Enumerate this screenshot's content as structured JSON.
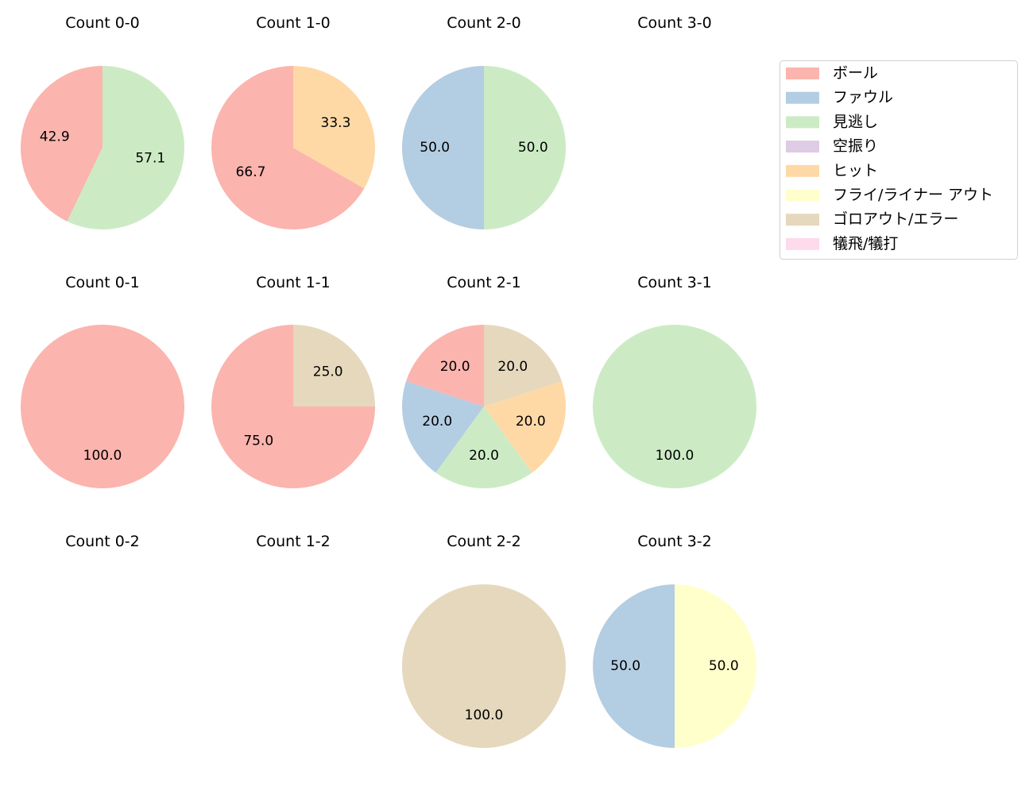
{
  "chart_data": {
    "type": "pie",
    "legend": {
      "placement": "top-right",
      "entries": [
        {
          "label": "ボール",
          "color": "#fbb4ae"
        },
        {
          "label": "ファウル",
          "color": "#b3cde3"
        },
        {
          "label": "見逃し",
          "color": "#ccebc5"
        },
        {
          "label": "空振り",
          "color": "#decbe4"
        },
        {
          "label": "ヒット",
          "color": "#fed9a6"
        },
        {
          "label": "フライ/ライナー アウト",
          "color": "#ffffcc"
        },
        {
          "label": "ゴロアウト/エラー",
          "color": "#e5d8bd"
        },
        {
          "label": "犠飛/犠打",
          "color": "#fddaec"
        }
      ]
    },
    "panels": [
      {
        "title": "Count 0-0",
        "slices": [
          {
            "category": 0,
            "value": 42.9,
            "label": "42.9"
          },
          {
            "category": 2,
            "value": 57.1,
            "label": "57.1"
          }
        ]
      },
      {
        "title": "Count 1-0",
        "slices": [
          {
            "category": 0,
            "value": 66.7,
            "label": "66.7"
          },
          {
            "category": 4,
            "value": 33.3,
            "label": "33.3"
          }
        ]
      },
      {
        "title": "Count 2-0",
        "slices": [
          {
            "category": 1,
            "value": 50.0,
            "label": "50.0"
          },
          {
            "category": 2,
            "value": 50.0,
            "label": "50.0"
          }
        ]
      },
      {
        "title": "Count 3-0",
        "slices": []
      },
      {
        "title": "Count 0-1",
        "slices": [
          {
            "category": 0,
            "value": 100.0,
            "label": "100.0"
          }
        ]
      },
      {
        "title": "Count 1-1",
        "slices": [
          {
            "category": 0,
            "value": 75.0,
            "label": "75.0"
          },
          {
            "category": 6,
            "value": 25.0,
            "label": "25.0"
          }
        ]
      },
      {
        "title": "Count 2-1",
        "slices": [
          {
            "category": 0,
            "value": 20.0,
            "label": "20.0"
          },
          {
            "category": 1,
            "value": 20.0,
            "label": "20.0"
          },
          {
            "category": 2,
            "value": 20.0,
            "label": "20.0"
          },
          {
            "category": 4,
            "value": 20.0,
            "label": "20.0"
          },
          {
            "category": 6,
            "value": 20.0,
            "label": "20.0"
          }
        ]
      },
      {
        "title": "Count 3-1",
        "slices": [
          {
            "category": 2,
            "value": 100.0,
            "label": "100.0"
          }
        ]
      },
      {
        "title": "Count 0-2",
        "slices": []
      },
      {
        "title": "Count 1-2",
        "slices": []
      },
      {
        "title": "Count 2-2",
        "slices": [
          {
            "category": 6,
            "value": 100.0,
            "label": "100.0"
          }
        ]
      },
      {
        "title": "Count 3-2",
        "slices": [
          {
            "category": 1,
            "value": 50.0,
            "label": "50.0"
          },
          {
            "category": 5,
            "value": 50.0,
            "label": "50.0"
          }
        ]
      }
    ]
  }
}
